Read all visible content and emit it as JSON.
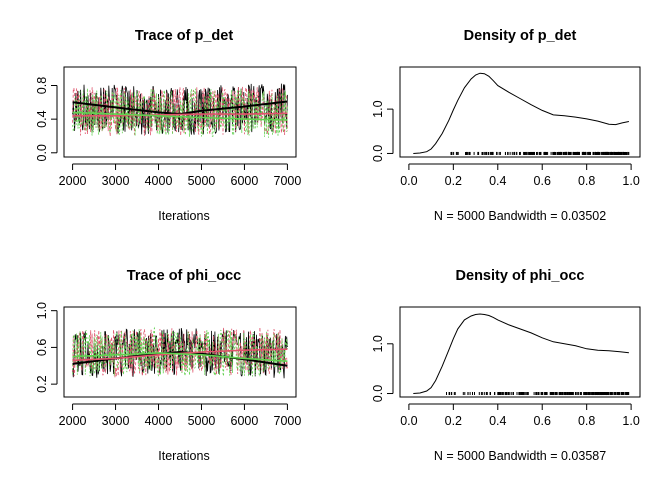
{
  "chart_data": [
    {
      "type": "line",
      "kind": "trace",
      "title": "Trace of p_det",
      "xlabel": "Iterations",
      "ylabel": "",
      "xlim": [
        2000,
        7000
      ],
      "ylim": [
        0.0,
        1.0
      ],
      "xticks": [
        2000,
        3000,
        4000,
        5000,
        6000,
        7000
      ],
      "yticks": [
        0.0,
        0.4,
        0.8
      ],
      "ytick_labels": [
        "0.0",
        "0.4",
        "0.8"
      ],
      "chain_colors": [
        "#000000",
        "#DF536B",
        "#61D04F"
      ],
      "series": [
        {
          "name": "smooth-1",
          "color": "#000000",
          "x": [
            2000,
            3000,
            4000,
            4500,
            5000,
            6000,
            7000
          ],
          "values": [
            0.6,
            0.54,
            0.48,
            0.46,
            0.5,
            0.55,
            0.61
          ]
        },
        {
          "name": "smooth-2",
          "color": "#DF536B",
          "x": [
            2000,
            3000,
            4000,
            5000,
            6000,
            7000
          ],
          "values": [
            0.44,
            0.44,
            0.45,
            0.46,
            0.46,
            0.47
          ]
        },
        {
          "name": "smooth-3",
          "color": "#61D04F",
          "x": [
            2000,
            3000,
            4000,
            5000,
            6000,
            7000
          ],
          "values": [
            0.48,
            0.46,
            0.44,
            0.42,
            0.4,
            0.39
          ]
        }
      ]
    },
    {
      "type": "line",
      "kind": "density",
      "title": "Density of p_det",
      "subtitle": "N = 5000   Bandwidth = 0.03502",
      "xlim": [
        0.0,
        1.0
      ],
      "ylim": [
        0.0,
        1.9
      ],
      "xticks": [
        0.0,
        0.2,
        0.4,
        0.6,
        0.8,
        1.0
      ],
      "xtick_labels": [
        "0.0",
        "0.2",
        "0.4",
        "0.6",
        "0.8",
        "1.0"
      ],
      "yticks": [
        0.0,
        1.0
      ],
      "ytick_labels": [
        "0.0",
        "1.0"
      ],
      "rug_range": [
        0.08,
        0.99
      ],
      "series": [
        {
          "name": "density",
          "color": "#000000",
          "x": [
            0.02,
            0.05,
            0.08,
            0.1,
            0.12,
            0.15,
            0.18,
            0.2,
            0.22,
            0.25,
            0.28,
            0.3,
            0.32,
            0.34,
            0.36,
            0.38,
            0.4,
            0.45,
            0.5,
            0.55,
            0.6,
            0.65,
            0.7,
            0.75,
            0.8,
            0.85,
            0.9,
            0.93,
            0.96,
            0.99
          ],
          "values": [
            0.0,
            0.01,
            0.04,
            0.1,
            0.22,
            0.45,
            0.75,
            0.98,
            1.2,
            1.48,
            1.68,
            1.77,
            1.81,
            1.8,
            1.74,
            1.64,
            1.53,
            1.38,
            1.24,
            1.1,
            0.97,
            0.87,
            0.85,
            0.82,
            0.78,
            0.73,
            0.66,
            0.65,
            0.69,
            0.72
          ]
        }
      ]
    },
    {
      "type": "line",
      "kind": "trace",
      "title": "Trace of phi_occ",
      "xlabel": "Iterations",
      "ylabel": "",
      "xlim": [
        2000,
        7000
      ],
      "ylim": [
        0.1,
        1.0
      ],
      "xticks": [
        2000,
        3000,
        4000,
        5000,
        6000,
        7000
      ],
      "yticks": [
        0.2,
        0.6,
        1.0
      ],
      "ytick_labels": [
        "0.2",
        "0.6",
        "1.0"
      ],
      "chain_colors": [
        "#000000",
        "#DF536B",
        "#61D04F"
      ],
      "series": [
        {
          "name": "smooth-1",
          "color": "#000000",
          "x": [
            2000,
            3000,
            4000,
            4500,
            5000,
            6000,
            7000
          ],
          "values": [
            0.42,
            0.48,
            0.53,
            0.55,
            0.53,
            0.47,
            0.4
          ]
        },
        {
          "name": "smooth-2",
          "color": "#DF536B",
          "x": [
            2000,
            3000,
            4000,
            5000,
            6000,
            7000
          ],
          "values": [
            0.46,
            0.48,
            0.52,
            0.55,
            0.57,
            0.58
          ]
        },
        {
          "name": "smooth-3",
          "color": "#61D04F",
          "x": [
            2000,
            3000,
            4000,
            5000,
            6000,
            7000
          ],
          "values": [
            0.5,
            0.52,
            0.54,
            0.52,
            0.48,
            0.45
          ]
        }
      ]
    },
    {
      "type": "line",
      "kind": "density",
      "title": "Density of phi_occ",
      "subtitle": "N = 5000   Bandwidth = 0.03587",
      "xlim": [
        0.0,
        1.0
      ],
      "ylim": [
        0.0,
        1.7
      ],
      "xticks": [
        0.0,
        0.2,
        0.4,
        0.6,
        0.8,
        1.0
      ],
      "xtick_labels": [
        "0.0",
        "0.2",
        "0.4",
        "0.6",
        "0.8",
        "1.0"
      ],
      "yticks": [
        0.0,
        1.0
      ],
      "ytick_labels": [
        "0.0",
        "1.0"
      ],
      "rug_range": [
        0.08,
        0.99
      ],
      "series": [
        {
          "name": "density",
          "color": "#000000",
          "x": [
            0.02,
            0.05,
            0.08,
            0.1,
            0.12,
            0.15,
            0.18,
            0.2,
            0.22,
            0.25,
            0.28,
            0.3,
            0.32,
            0.34,
            0.36,
            0.38,
            0.4,
            0.45,
            0.5,
            0.55,
            0.6,
            0.65,
            0.7,
            0.75,
            0.8,
            0.85,
            0.9,
            0.95,
            0.99
          ],
          "values": [
            0.0,
            0.01,
            0.05,
            0.12,
            0.26,
            0.55,
            0.88,
            1.1,
            1.3,
            1.48,
            1.56,
            1.59,
            1.6,
            1.59,
            1.57,
            1.53,
            1.48,
            1.38,
            1.3,
            1.22,
            1.12,
            1.04,
            1.0,
            0.96,
            0.9,
            0.87,
            0.86,
            0.84,
            0.82
          ]
        }
      ]
    }
  ]
}
